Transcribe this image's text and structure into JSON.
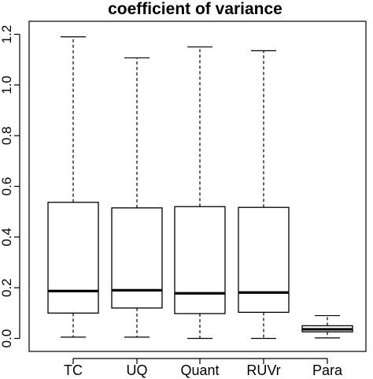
{
  "chart_data": {
    "type": "boxplot",
    "title": "coefficient of variance",
    "xlabel": "",
    "ylabel": "",
    "ylim": [
      -0.05,
      1.23
    ],
    "yticks": [
      0.0,
      0.2,
      0.4,
      0.6,
      0.8,
      1.0,
      1.2
    ],
    "ytick_labels": [
      "0.0",
      "0.2",
      "0.4",
      "0.6",
      "0.8",
      "1.0",
      "1.2"
    ],
    "categories": [
      "TC",
      "UQ",
      "Quant",
      "RUVr",
      "Para"
    ],
    "boxes": [
      {
        "category": "TC",
        "whisker_low": 0.005,
        "q1": 0.1,
        "median": 0.187,
        "q3": 0.537,
        "whisker_high": 1.19
      },
      {
        "category": "UQ",
        "whisker_low": 0.005,
        "q1": 0.12,
        "median": 0.19,
        "q3": 0.515,
        "whisker_high": 1.107
      },
      {
        "category": "Quant",
        "whisker_low": 0.0,
        "q1": 0.098,
        "median": 0.178,
        "q3": 0.52,
        "whisker_high": 1.15
      },
      {
        "category": "RUVr",
        "whisker_low": 0.0,
        "q1": 0.103,
        "median": 0.181,
        "q3": 0.517,
        "whisker_high": 1.135
      },
      {
        "category": "Para",
        "whisker_low": 0.002,
        "q1": 0.026,
        "median": 0.036,
        "q3": 0.05,
        "whisker_high": 0.09
      }
    ],
    "grid": false,
    "legend": "none"
  }
}
